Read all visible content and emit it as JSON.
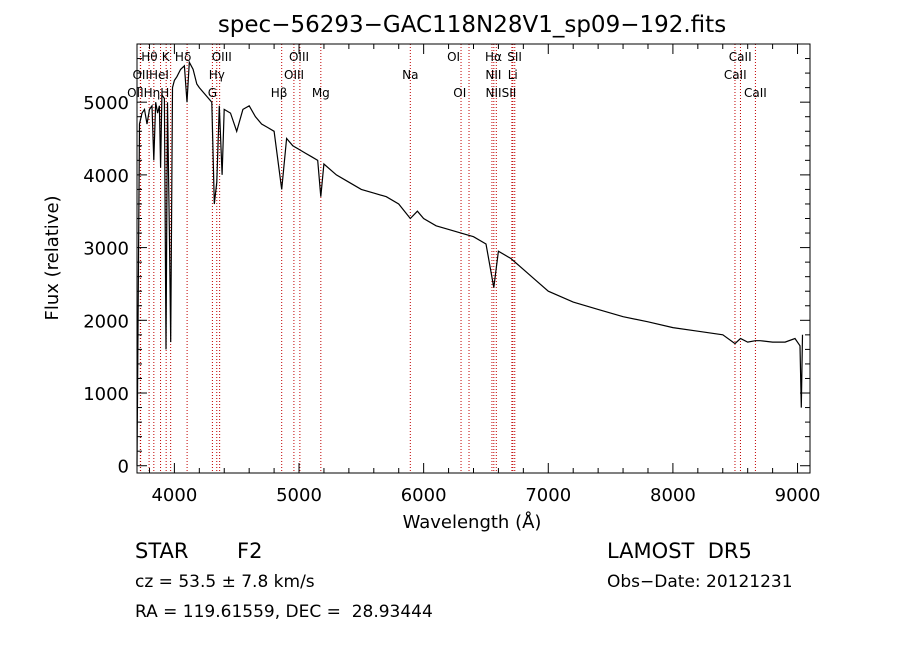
{
  "chart_data": {
    "type": "line",
    "title": "spec−56293−GAC118N28V1_sp09−192.fits",
    "xlabel": "Wavelength (Å)",
    "ylabel": "Flux (relative)",
    "xlim": [
      3700,
      9100
    ],
    "ylim": [
      -100,
      5800
    ],
    "x_ticks": [
      4000,
      5000,
      6000,
      7000,
      8000,
      9000
    ],
    "y_ticks": [
      0,
      1000,
      2000,
      3000,
      4000,
      5000
    ],
    "x_tick_labels": [
      "4000",
      "5000",
      "6000",
      "7000",
      "8000",
      "9000"
    ],
    "y_tick_labels": [
      "0",
      "1000",
      "2000",
      "3000",
      "4000",
      "5000"
    ],
    "grid": false,
    "series": [
      {
        "x": [
          3700,
          3720,
          3740,
          3760,
          3780,
          3800,
          3820,
          3835,
          3850,
          3865,
          3880,
          3889,
          3900,
          3920,
          3933,
          3945,
          3960,
          3970,
          3985,
          4000,
          4020,
          4050,
          4080,
          4101,
          4120,
          4150,
          4180,
          4200,
          4250,
          4300,
          4320,
          4340,
          4360,
          4383,
          4400,
          4450,
          4500,
          4550,
          4600,
          4650,
          4700,
          4750,
          4800,
          4861,
          4900,
          4950,
          5000,
          5050,
          5100,
          5150,
          5175,
          5200,
          5300,
          5400,
          5500,
          5600,
          5700,
          5800,
          5893,
          5950,
          6000,
          6100,
          6200,
          6300,
          6400,
          6500,
          6563,
          6600,
          6700,
          6800,
          6900,
          7000,
          7200,
          7400,
          7600,
          7800,
          8000,
          8200,
          8400,
          8498,
          8542,
          8600,
          8662,
          8700,
          8800,
          8900,
          8980,
          9020,
          9030,
          9040
        ],
        "y": [
          0,
          4700,
          4850,
          4900,
          4700,
          4900,
          4950,
          4200,
          5000,
          4850,
          4950,
          4100,
          5100,
          5050,
          1600,
          5000,
          3200,
          1700,
          5200,
          5300,
          5350,
          5450,
          5500,
          5000,
          5550,
          5450,
          5250,
          5200,
          5100,
          5000,
          3600,
          3900,
          4950,
          4000,
          4900,
          4850,
          4600,
          4900,
          4950,
          4800,
          4700,
          4650,
          4600,
          3800,
          4500,
          4400,
          4350,
          4300,
          4250,
          4200,
          3700,
          4150,
          4000,
          3900,
          3800,
          3750,
          3700,
          3600,
          3400,
          3500,
          3400,
          3300,
          3250,
          3200,
          3150,
          3050,
          2450,
          2950,
          2850,
          2700,
          2550,
          2400,
          2250,
          2150,
          2050,
          1980,
          1900,
          1850,
          1800,
          1680,
          1750,
          1700,
          1720,
          1720,
          1700,
          1700,
          1750,
          1650,
          800,
          1800
        ]
      }
    ],
    "line_marks": [
      {
        "name": "Hθ",
        "x": 3797
      },
      {
        "name": "OII",
        "x": 3727
      },
      {
        "name": "OII",
        "x": 3729
      },
      {
        "name": "K",
        "x": 3934
      },
      {
        "name": "Hη",
        "x": 3835
      },
      {
        "name": "HeI",
        "x": 3889
      },
      {
        "name": "Hε",
        "x": 3970
      },
      {
        "name": "Hδ",
        "x": 4102
      },
      {
        "name": "Hγ",
        "x": 4340
      },
      {
        "name": "G",
        "x": 4305
      },
      {
        "name": "OIII",
        "x": 4363
      },
      {
        "name": "Hβ",
        "x": 4861
      },
      {
        "name": "OIII",
        "x": 4959
      },
      {
        "name": "OIII",
        "x": 5007
      },
      {
        "name": "Mg",
        "x": 5175
      },
      {
        "name": "Na",
        "x": 5893
      },
      {
        "name": "OI",
        "x": 6300
      },
      {
        "name": "OI",
        "x": 6364
      },
      {
        "name": "NII",
        "x": 6548
      },
      {
        "name": "Hα",
        "x": 6563
      },
      {
        "name": "NII",
        "x": 6583
      },
      {
        "name": "Li",
        "x": 6708
      },
      {
        "name": "SII",
        "x": 6716
      },
      {
        "name": "SII",
        "x": 6731
      },
      {
        "name": "CaII",
        "x": 8498
      },
      {
        "name": "CaII",
        "x": 8542
      },
      {
        "name": "CaII",
        "x": 8662
      }
    ],
    "line_labels": [
      {
        "text": "Hθ",
        "x": 3800,
        "row": 0
      },
      {
        "text": "K",
        "x": 3930,
        "row": 0
      },
      {
        "text": "Hδ",
        "x": 4070,
        "row": 0
      },
      {
        "text": "OIII",
        "x": 4380,
        "row": 0
      },
      {
        "text": "OIII",
        "x": 5000,
        "row": 0
      },
      {
        "text": "OI",
        "x": 6240,
        "row": 0
      },
      {
        "text": "Hα",
        "x": 6560,
        "row": 0
      },
      {
        "text": "SII",
        "x": 6730,
        "row": 0
      },
      {
        "text": "CaII",
        "x": 8540,
        "row": 0
      },
      {
        "text": "OIIHeI",
        "x": 3810,
        "row": 1
      },
      {
        "text": "Hγ",
        "x": 4340,
        "row": 1
      },
      {
        "text": "OIII",
        "x": 4960,
        "row": 1
      },
      {
        "text": "Na",
        "x": 5893,
        "row": 1
      },
      {
        "text": "NII",
        "x": 6560,
        "row": 1
      },
      {
        "text": "Li",
        "x": 6715,
        "row": 1
      },
      {
        "text": "CaII",
        "x": 8500,
        "row": 1
      },
      {
        "text": "OIIHηH",
        "x": 3790,
        "row": 2
      },
      {
        "text": "G",
        "x": 4305,
        "row": 2
      },
      {
        "text": "Hβ",
        "x": 4840,
        "row": 2
      },
      {
        "text": "Mg",
        "x": 5175,
        "row": 2
      },
      {
        "text": "OI",
        "x": 6290,
        "row": 2
      },
      {
        "text": "NIISII",
        "x": 6620,
        "row": 2
      },
      {
        "text": "CaII",
        "x": 8662,
        "row": 2
      }
    ]
  },
  "info": {
    "class_label": "STAR",
    "subclass": "F2",
    "survey": "LAMOST  DR5",
    "redshift": "cz = 53.5 ± 7.8 km/s",
    "obs_date": "Obs−Date: 20121231",
    "coords": "RA = 119.61559, DEC =  28.93444"
  }
}
